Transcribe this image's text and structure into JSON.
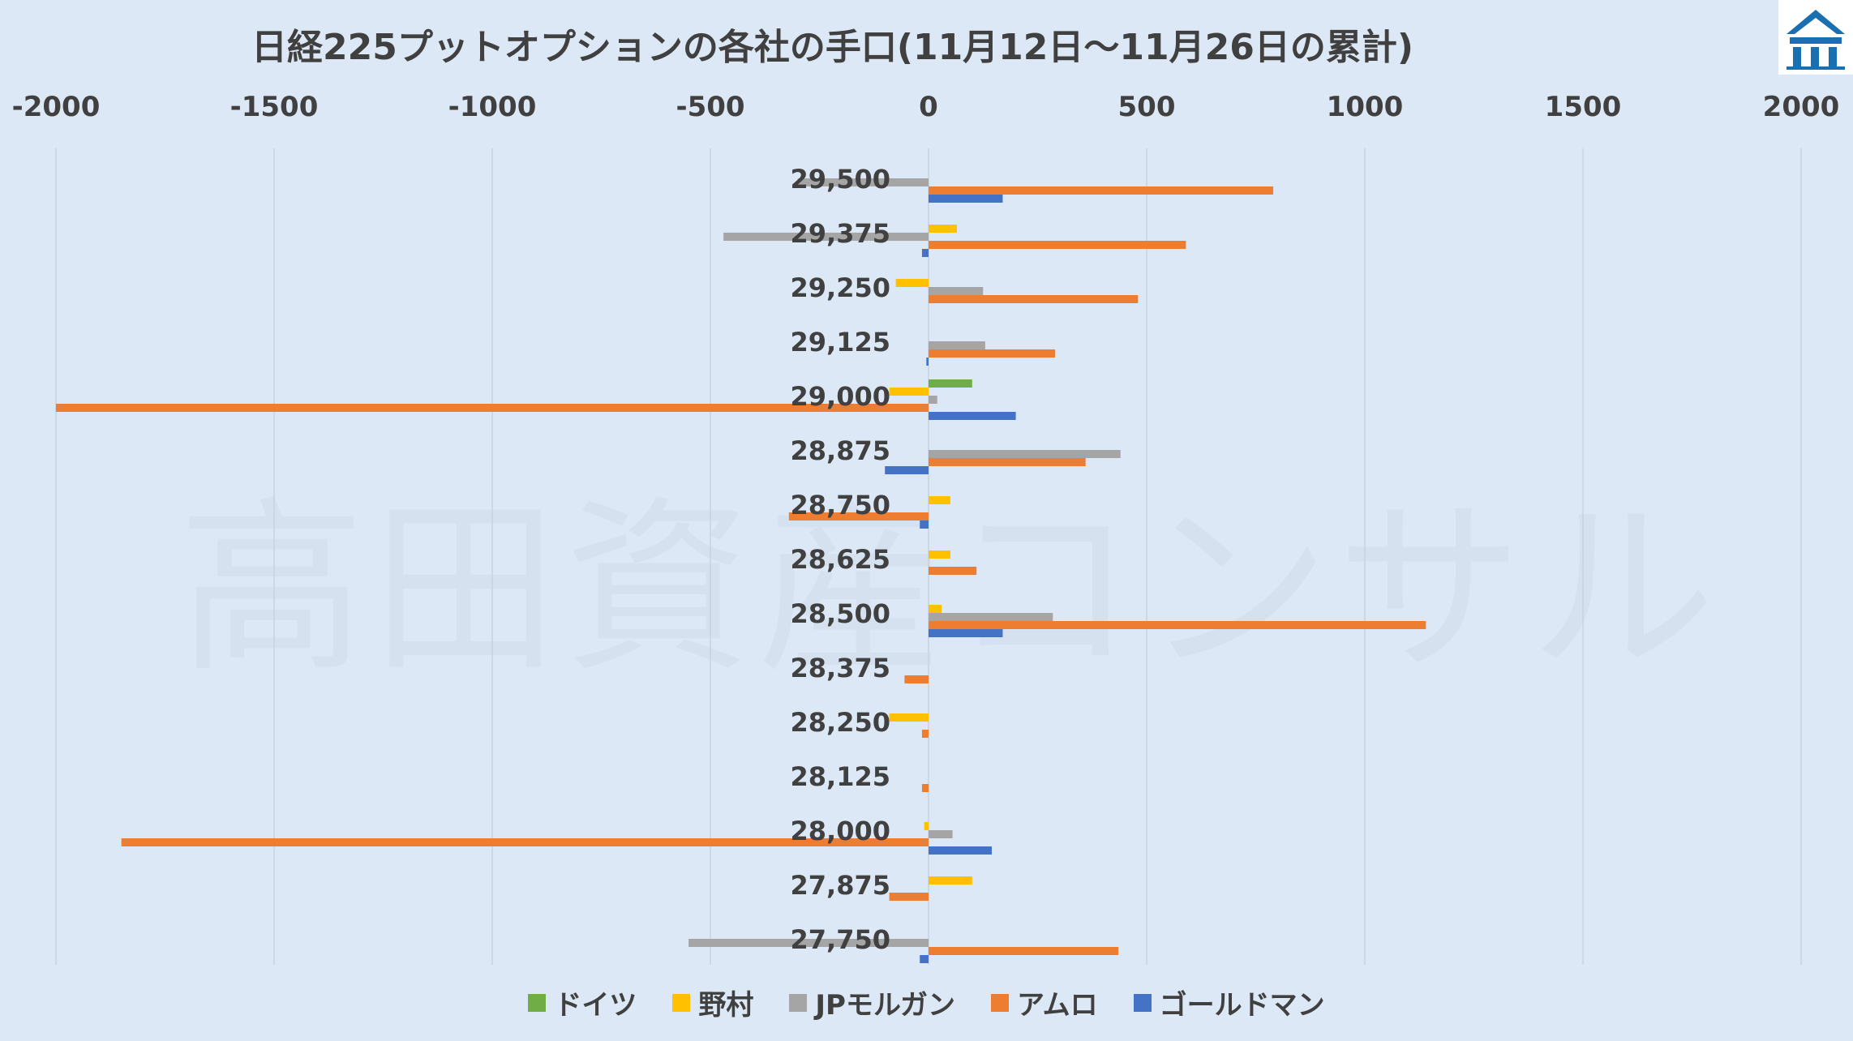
{
  "chart_data": {
    "type": "bar",
    "orientation": "horizontal",
    "title": "日経225プットオプションの各社の手口(11月12日～11月26日の累計)",
    "xlim": [
      -2000,
      2000
    ],
    "xticks": [
      "-2000",
      "-1500",
      "-1000",
      "-500",
      "0",
      "500",
      "1000",
      "1500",
      "2000"
    ],
    "xtick_values": [
      -2000,
      -1500,
      -1000,
      -500,
      0,
      500,
      1000,
      1500,
      2000
    ],
    "categories": [
      "29,500",
      "29,375",
      "29,250",
      "29,125",
      "29,000",
      "28,875",
      "28,750",
      "28,625",
      "28,500",
      "28,375",
      "28,250",
      "28,125",
      "28,000",
      "27,875",
      "27,750"
    ],
    "series": [
      {
        "name": "ドイツ",
        "color": "#70ad47",
        "values": [
          0,
          0,
          0,
          0,
          100,
          0,
          0,
          0,
          0,
          0,
          0,
          0,
          0,
          0,
          0
        ]
      },
      {
        "name": "野村",
        "color": "#ffc000",
        "values": [
          0,
          65,
          -75,
          0,
          -90,
          0,
          50,
          50,
          30,
          0,
          -90,
          0,
          -10,
          100,
          0
        ]
      },
      {
        "name": "JPモルガン",
        "color": "#a5a5a5",
        "values": [
          -300,
          -470,
          125,
          130,
          20,
          440,
          0,
          0,
          285,
          0,
          0,
          0,
          55,
          0,
          -550
        ]
      },
      {
        "name": "アムロ",
        "color": "#ed7d31",
        "values": [
          790,
          590,
          480,
          290,
          -2000,
          360,
          -320,
          110,
          1140,
          -55,
          -15,
          -15,
          -1850,
          -90,
          435
        ]
      },
      {
        "name": "ゴールドマン",
        "color": "#4472c4",
        "values": [
          170,
          -15,
          0,
          -5,
          200,
          -100,
          -20,
          0,
          170,
          0,
          0,
          0,
          145,
          0,
          -20
        ]
      }
    ],
    "grid": "vertical",
    "legend": "bottom"
  },
  "watermark": "高田資産コンサル"
}
